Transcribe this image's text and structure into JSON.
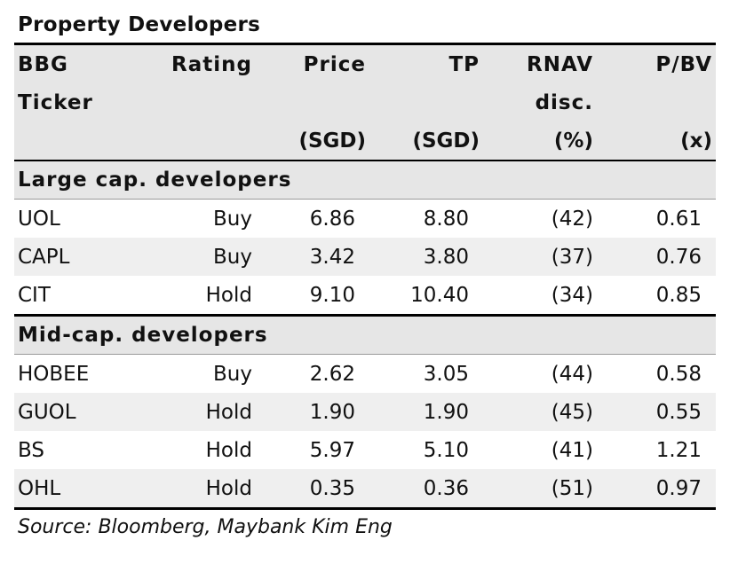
{
  "title": "Property Developers",
  "headers": {
    "row1": [
      "BBG",
      "Rating",
      "Price",
      "TP",
      "RNAV",
      "P/BV"
    ],
    "row2": [
      "Ticker",
      "",
      "",
      "",
      "disc.",
      ""
    ],
    "row3": [
      "",
      "",
      "(SGD)",
      "(SGD)",
      "(%)",
      "(x)"
    ]
  },
  "sections": [
    {
      "label": "Large cap. developers",
      "rows": [
        {
          "ticker": "UOL",
          "rating": "Buy",
          "price": "6.86",
          "tp": "8.80",
          "rnav": "(42)",
          "pbv": "0.61"
        },
        {
          "ticker": "CAPL",
          "rating": "Buy",
          "price": "3.42",
          "tp": "3.80",
          "rnav": "(37)",
          "pbv": "0.76"
        },
        {
          "ticker": "CIT",
          "rating": "Hold",
          "price": "9.10",
          "tp": "10.40",
          "rnav": "(34)",
          "pbv": "0.85"
        }
      ]
    },
    {
      "label": "Mid-cap. developers",
      "rows": [
        {
          "ticker": "HOBEE",
          "rating": "Buy",
          "price": "2.62",
          "tp": "3.05",
          "rnav": "(44)",
          "pbv": "0.58"
        },
        {
          "ticker": "GUOL",
          "rating": "Hold",
          "price": "1.90",
          "tp": "1.90",
          "rnav": "(45)",
          "pbv": "0.55"
        },
        {
          "ticker": "BS",
          "rating": "Hold",
          "price": "5.97",
          "tp": "5.10",
          "rnav": "(41)",
          "pbv": "1.21"
        },
        {
          "ticker": "OHL",
          "rating": "Hold",
          "price": "0.35",
          "tp": "0.36",
          "rnav": "(51)",
          "pbv": "0.97"
        }
      ]
    }
  ],
  "source": "Source: Bloomberg, Maybank Kim Eng"
}
